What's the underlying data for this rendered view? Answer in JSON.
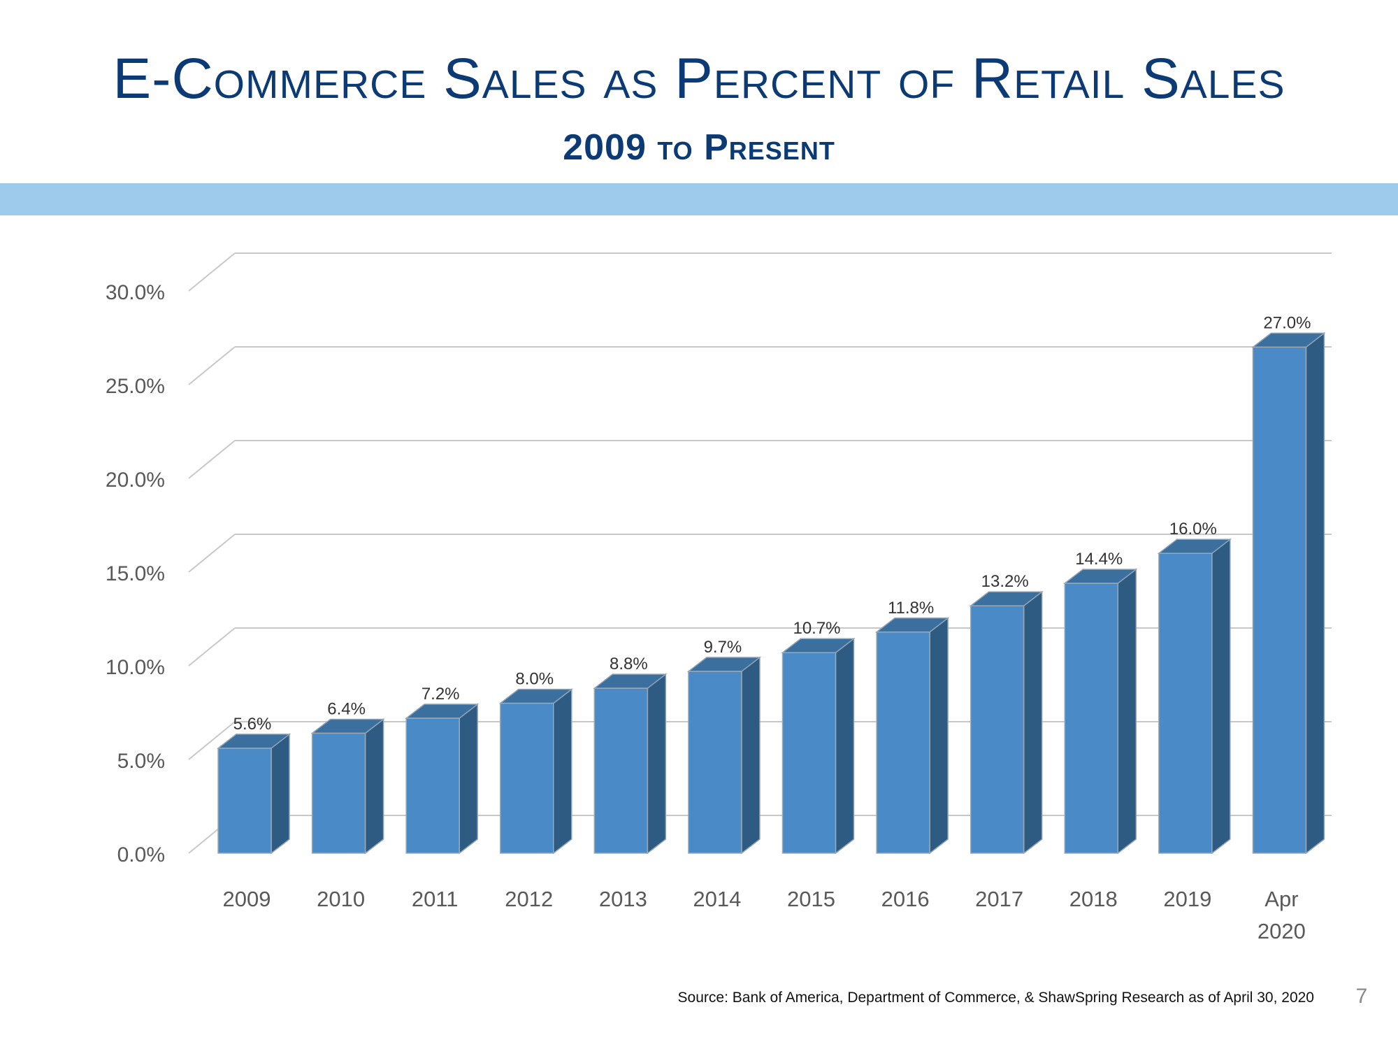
{
  "slide": {
    "title": "E-Commerce Sales as Percent of Retail Sales",
    "subtitle": "2009 to Present",
    "source": "Source:  Bank of America, Department of Commerce, & ShawSpring Research as of April 30, 2020",
    "page_number": "7"
  },
  "colors": {
    "title": "#0b3a74",
    "band": "#9ecbeb",
    "bar_front": "#4a8bc7",
    "bar_side": "#2e5b82",
    "bar_top": "#3a6f9e",
    "gridline": "#c8c8c8",
    "axis_text": "#595959"
  },
  "chart_data": {
    "type": "bar",
    "style": "3d-column",
    "categories": [
      "2009",
      "2010",
      "2011",
      "2012",
      "2013",
      "2014",
      "2015",
      "2016",
      "2017",
      "2018",
      "2019",
      "Apr\n2020"
    ],
    "values": [
      5.6,
      6.4,
      7.2,
      8.0,
      8.8,
      9.7,
      10.7,
      11.8,
      13.2,
      14.4,
      16.0,
      27.0
    ],
    "data_labels": [
      "5.6%",
      "6.4%",
      "7.2%",
      "8.0%",
      "8.8%",
      "9.7%",
      "10.7%",
      "11.8%",
      "13.2%",
      "14.4%",
      "16.0%",
      "27.0%"
    ],
    "y_ticks": [
      "0.0%",
      "5.0%",
      "10.0%",
      "15.0%",
      "20.0%",
      "25.0%",
      "30.0%"
    ],
    "ylim": [
      0,
      30
    ],
    "grid": true,
    "legend": false
  }
}
